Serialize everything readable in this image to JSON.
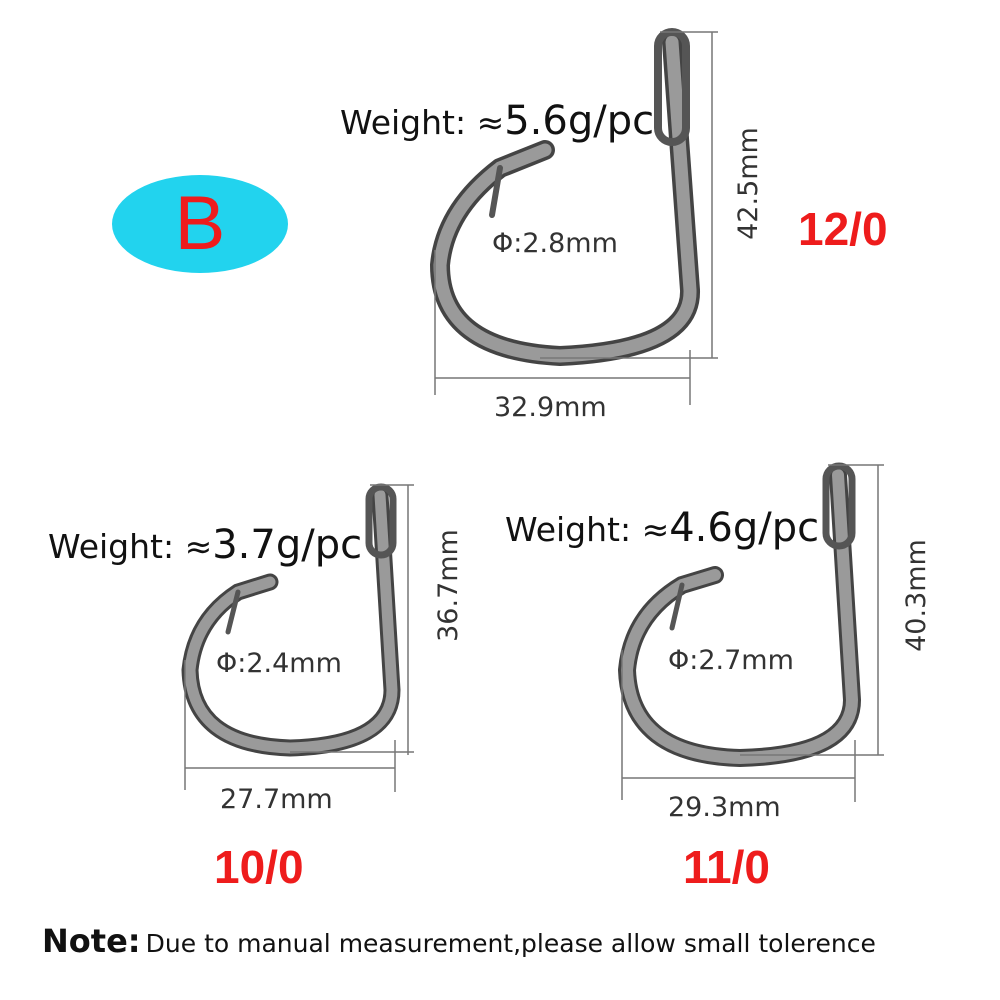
{
  "badge": {
    "label": "B",
    "bg_color": "#22d3ee",
    "text_color": "#ee1c1c"
  },
  "hooks": [
    {
      "size": "12/0",
      "weight_prefix": "Weight: ≈",
      "weight_value": "5.6g/pc",
      "diameter": "Φ:2.8mm",
      "length": "42.5mm",
      "width": "32.9mm"
    },
    {
      "size": "10/0",
      "weight_prefix": "Weight: ≈",
      "weight_value": "3.7g/pc",
      "diameter": "Φ:2.4mm",
      "length": "36.7mm",
      "width": "27.7mm"
    },
    {
      "size": "11/0",
      "weight_prefix": "Weight: ≈",
      "weight_value": "4.6g/pc",
      "diameter": "Φ:2.7mm",
      "length": "40.3mm",
      "width": "29.3mm"
    }
  ],
  "size_color": "#ee1c1c",
  "note": {
    "label": "Note:",
    "text": "Due to manual measurement,please allow small tolerence"
  }
}
